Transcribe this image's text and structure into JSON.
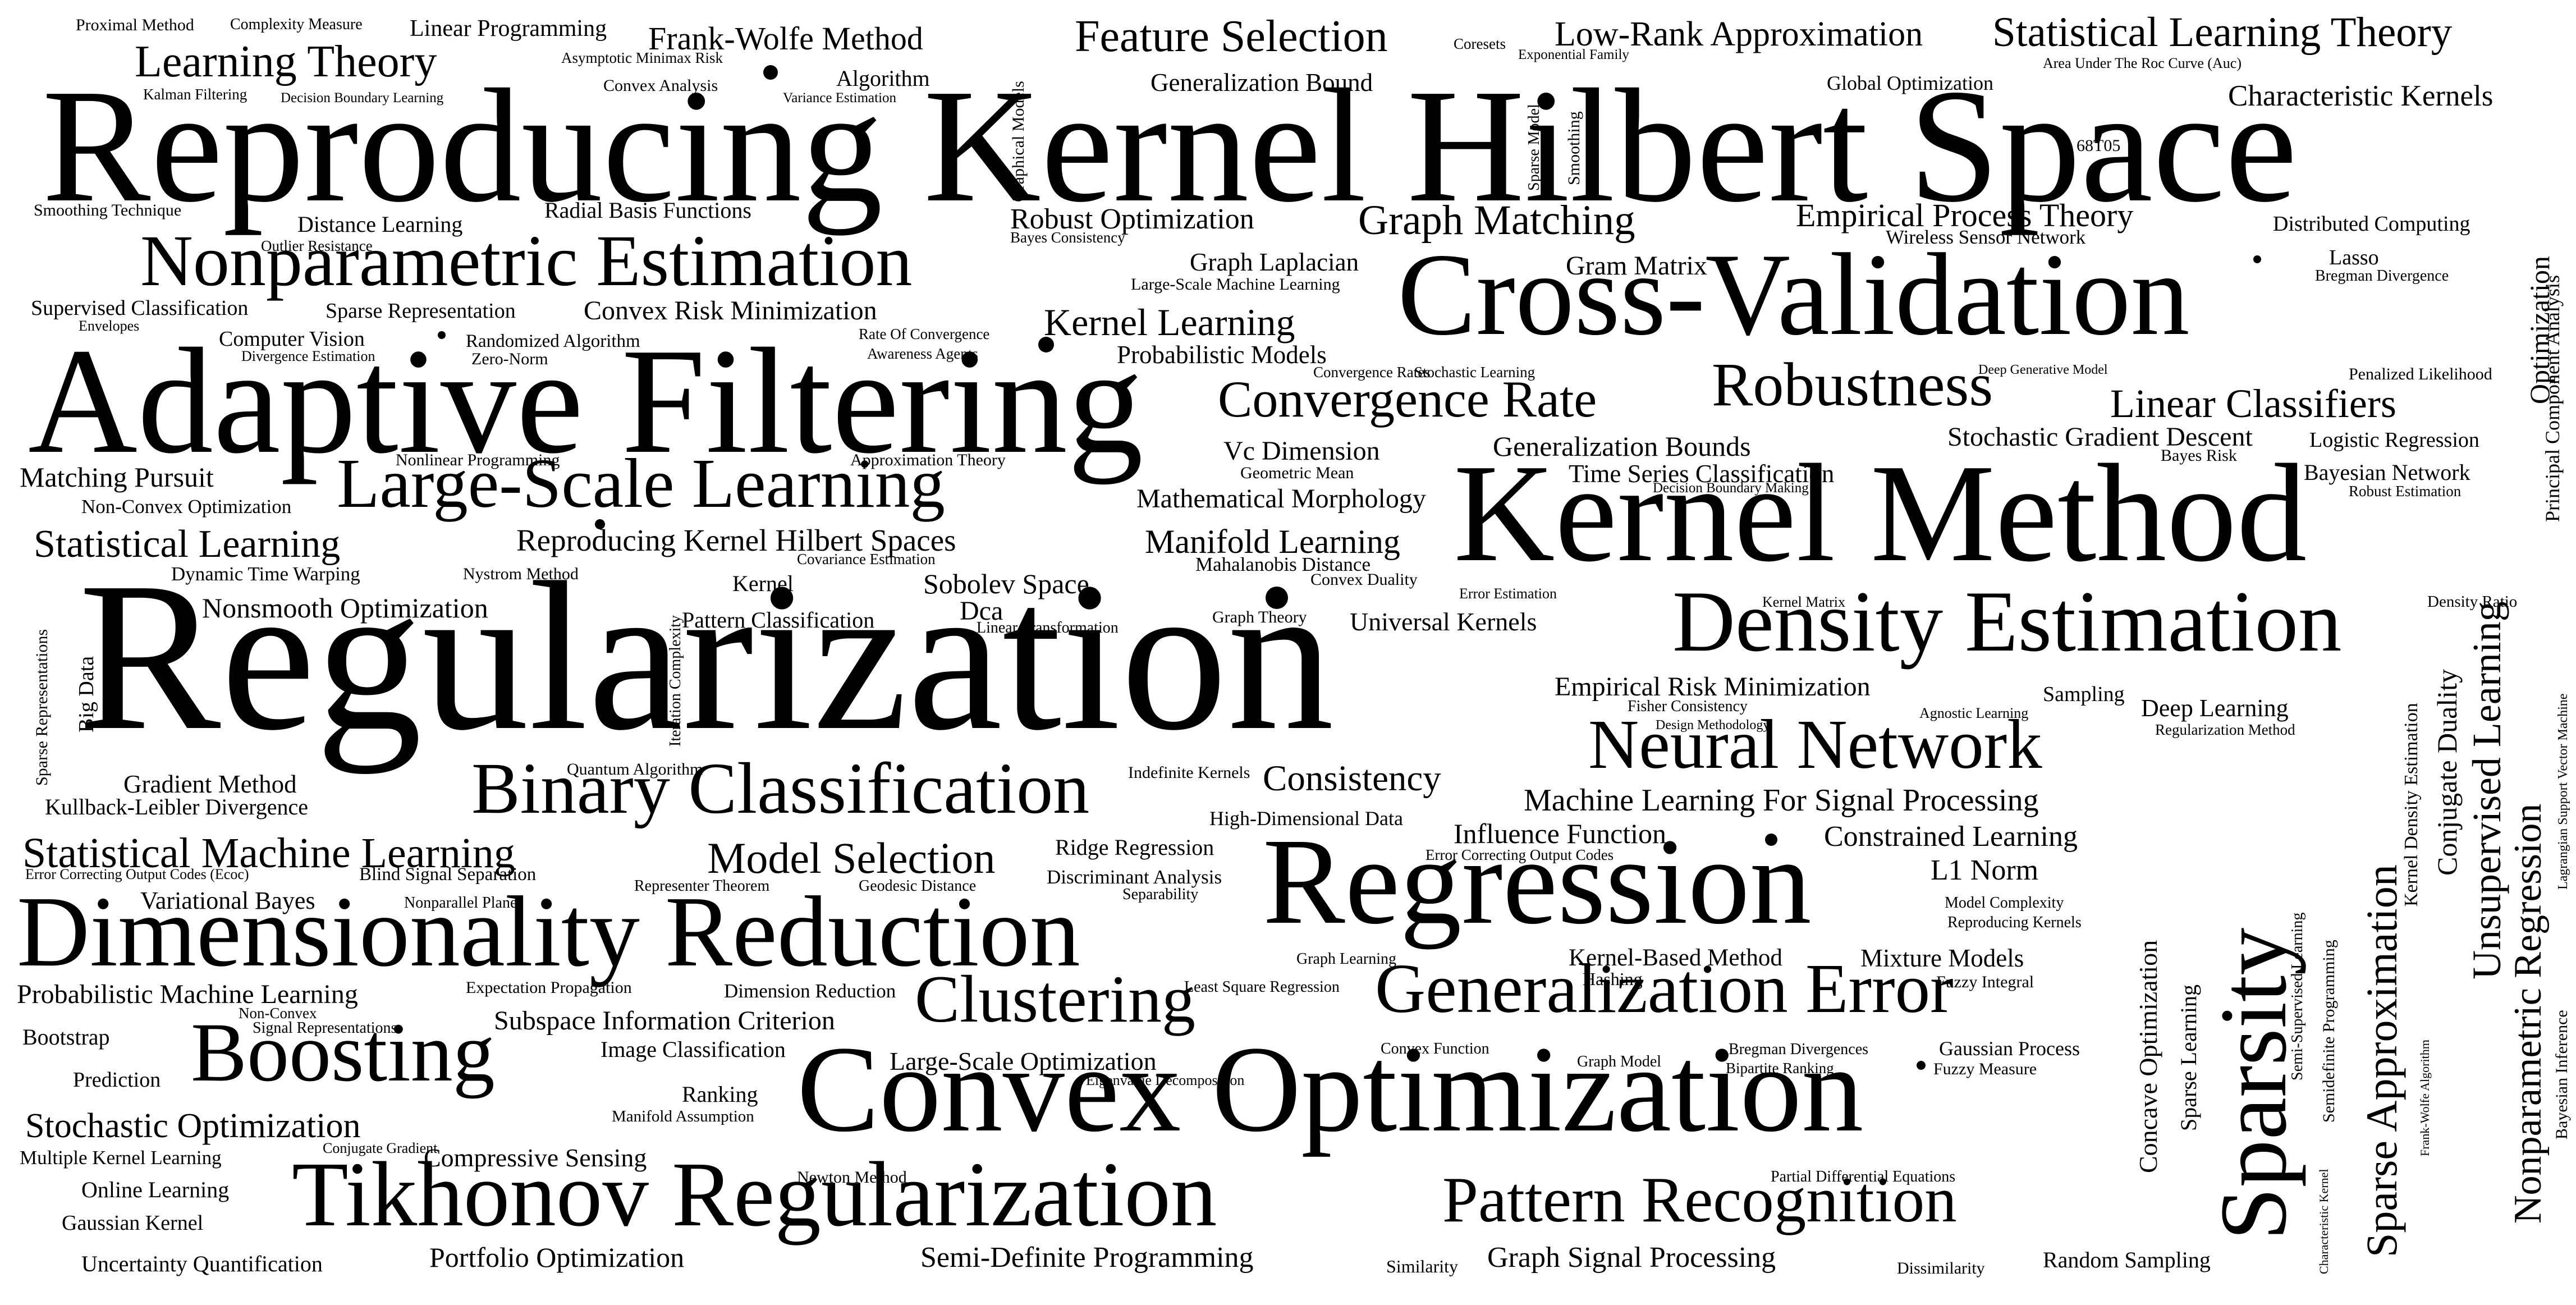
{
  "text_color": "#000000",
  "background": "#ffffff",
  "words": [
    "Reproducing Kernel Hilbert Space",
    "Regularization",
    "Kernel Method",
    "Adaptive Filtering",
    "Cross-Validation",
    "Convex Optimization",
    "Regression",
    "Dimensionality Reduction",
    "Tikhonov Regularization",
    "Sparsity",
    "Density Estimation",
    "Nonparametric Estimation",
    "Large-Scale Learning",
    "Binary Classification",
    "Boosting",
    "Generalization Error",
    "Neural Network",
    "Pattern Recognition",
    "Robustness",
    "Clustering",
    "Learning Theory",
    "Feature Selection",
    "Statistical Learning Theory",
    "Low-Rank Approximation",
    "Frank-Wolfe Method",
    "Linear Programming",
    "Proximal Method",
    "Complexity Measure",
    "Asymptotic Minimax Risk",
    "Kalman Filtering",
    "Decision Boundary Learning",
    "Convex Analysis",
    "Variance Estimation",
    "Algorithm",
    "Graphical Models",
    "Generalization Bound",
    "Coresets",
    "Exponential Family",
    "Area Under The Roc Curve (Auc)",
    "Global Optimization",
    "Characteristic Kernels",
    "Sparse Model",
    "Smoothing",
    "68T05",
    "Smoothing Technique",
    "Radial Basis Functions",
    "Outlier Resistance",
    "Distance Learning",
    "Robust Optimization",
    "Bayes Consistency",
    "Graph Matching",
    "Empirical Process Theory",
    "Wireless Sensor Network",
    "Distributed Computing",
    "Lasso",
    "Bregman Divergence",
    "Principal Component Analysis",
    "Optimization",
    "Graph Laplacian",
    "Large-Scale Machine Learning",
    "Gram Matrix",
    "Supervised Classification",
    "Sparse Representation",
    "Convex Risk Minimization",
    "Envelopes",
    "Computer Vision",
    "Randomized Algorithm",
    "Divergence Estimation",
    "Zero-Norm",
    "Rate Of Convergence",
    "Awareness Agents",
    "Kernel Learning",
    "Probabilistic Models",
    "Convergence Rates",
    "Stochastic Learning",
    "Deep Generative Model",
    "Penalized Likelihood",
    "Convergence Rate",
    "Linear Classifiers",
    "Stochastic Gradient Descent",
    "Logistic Regression",
    "Bayes Risk",
    "Nonlinear Programming",
    "Approximation Theory",
    "Vc Dimension",
    "Geometric Mean",
    "Generalization Bounds",
    "Matching Pursuit",
    "Non-Convex Optimization",
    "Mathematical Morphology",
    "Time Series Classification",
    "Decision Boundary Making",
    "Bayesian Network",
    "Robust Estimation",
    "Statistical Learning",
    "Reproducing Kernel Hilbert Spaces",
    "Covariance Estimation",
    "Manifold Learning",
    "Mahalanobis Distance",
    "Dynamic Time Warping",
    "Nystrom Method",
    "Convex Duality",
    "Kernel",
    "Sobolev Space",
    "Error Estimation",
    "Kernel Matrix",
    "Density Ratio",
    "Nonsmooth Optimization",
    "Pattern Classification",
    "Dca",
    "Linear Transformation",
    "Graph Theory",
    "Universal Kernels",
    "Sparse Representations",
    "Big Data",
    "Iteration Complexity",
    "Empirical Risk Minimization",
    "Fisher Consistency",
    "Sampling",
    "Agnostic Learning",
    "Deep Learning",
    "Design Methodology",
    "Regularization Method",
    "Kernel Density Estimation",
    "Conjugate Duality",
    "Unsupervised Learning",
    "Nonparametric Regression",
    "Lagrangian Support Vector Machine",
    "Bayesian Inference",
    "Gradient Method",
    "Quantum Algorithm",
    "Indefinite Kernels",
    "Consistency",
    "Kullback-Leibler Divergence",
    "High-Dimensional Data",
    "Machine Learning For Signal Processing",
    "Influence Function",
    "Statistical Machine Learning",
    "Model Selection",
    "Ridge Regression",
    "Constrained Learning",
    "Error Correcting Output Codes (Ecoc)",
    "Blind Signal Separation",
    "Representer Theorem",
    "Geodesic Distance",
    "Discriminant Analysis",
    "Error Correcting Output Codes",
    "L1 Norm",
    "Variational Bayes",
    "Nonparallel Planes",
    "Separability",
    "Model Complexity",
    "Reproducing Kernels",
    "Concave Optimization",
    "Sparse Learning",
    "Semi-Supervised Learning",
    "Semidefinite Programming",
    "Sparse Approximation",
    "Frank-Wolfe Algorithm",
    "Characteristic Kernel",
    "Graph Learning",
    "Kernel-Based Method",
    "Mixture Models",
    "Probabilistic Machine Learning",
    "Expectation Propagation",
    "Dimension Reduction",
    "Least Square Regression",
    "Hashing",
    "Fuzzy Integral",
    "Non-Convex",
    "Subspace Information Criterion",
    "Signal Representations",
    "Bootstrap",
    "Image Classification",
    "Large-Scale Optimization",
    "Convex Function",
    "Graph Model",
    "Bregman Divergences",
    "Gaussian Process",
    "Prediction",
    "Eigenvalue Decomposition",
    "Bipartite Ranking",
    "Fuzzy Measure",
    "Ranking",
    "Manifold Assumption",
    "Stochastic Optimization",
    "Conjugate Gradient",
    "Multiple Kernel Learning",
    "Compressive Sensing",
    "Online Learning",
    "Newton Method",
    "Partial Differential Equations",
    "Gaussian Kernel",
    "Uncertainty Quantification",
    "Portfolio Optimization",
    "Semi-Definite Programming",
    "Similarity",
    "Graph Signal Processing",
    "Dissimilarity",
    "Random Sampling"
  ]
}
